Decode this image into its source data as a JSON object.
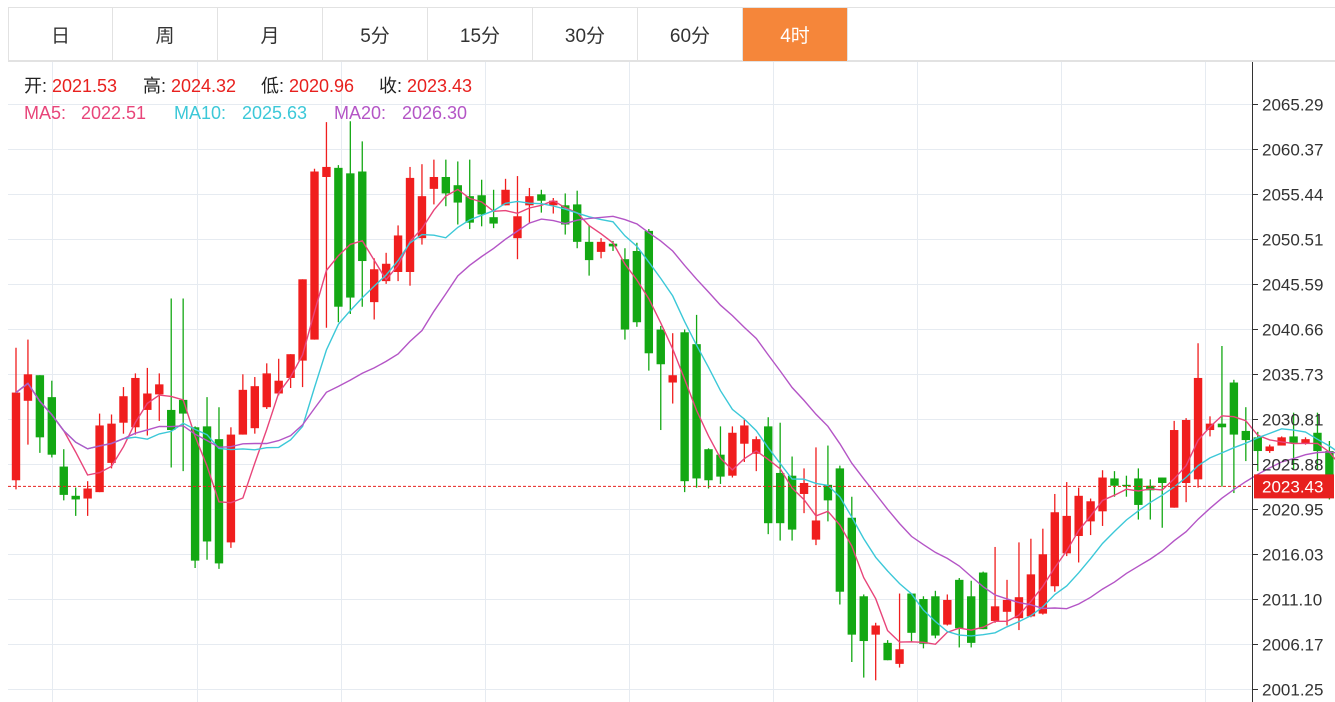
{
  "tabs": [
    {
      "label": "日",
      "active": false
    },
    {
      "label": "周",
      "active": false
    },
    {
      "label": "月",
      "active": false
    },
    {
      "label": "5分",
      "active": false
    },
    {
      "label": "15分",
      "active": false
    },
    {
      "label": "30分",
      "active": false
    },
    {
      "label": "60分",
      "active": false
    },
    {
      "label": "4时",
      "active": true
    }
  ],
  "ohlc_info": {
    "open_label": "开:",
    "open": "2021.53",
    "high_label": "高:",
    "high": "2024.32",
    "low_label": "低:",
    "low": "2020.96",
    "close_label": "收:",
    "close": "2023.43"
  },
  "ma_info": {
    "ma5_label": "MA5:",
    "ma5": "2022.51",
    "ma10_label": "MA10:",
    "ma10": "2025.63",
    "ma20_label": "MA20:",
    "ma20": "2026.30"
  },
  "colors": {
    "up": "#f01e1e",
    "down": "#13a813",
    "ma5": "#e8457a",
    "ma10": "#3cc8d8",
    "ma20": "#b455c6",
    "accent": "#f5863a",
    "value_text": "#e8201e",
    "grid": "#e6ebf1",
    "last_price_bg": "#e8201e"
  },
  "chart_data": {
    "type": "candlestick",
    "y_ticks": [
      "2065.29",
      "2060.37",
      "2055.44",
      "2050.51",
      "2045.59",
      "2040.66",
      "2035.73",
      "2030.81",
      "2025.88",
      "2020.95",
      "2016.03",
      "2011.10",
      "2006.17",
      "2001.25"
    ],
    "last_price": "2023.43",
    "ylim": [
      2001.25,
      2065.29
    ],
    "candles": [
      [
        2024.1,
        2033.7,
        2023.1,
        2038.6
      ],
      [
        2032.8,
        2035.7,
        2028.0,
        2039.5
      ],
      [
        2035.6,
        2028.8,
        2027.1,
        2035.6
      ],
      [
        2033.2,
        2026.9,
        2026.6,
        2035.0
      ],
      [
        2025.6,
        2022.5,
        2021.9,
        2027.5
      ],
      [
        2022.4,
        2022.0,
        2020.2,
        2023.3
      ],
      [
        2022.1,
        2023.2,
        2020.2,
        2024.0
      ],
      [
        2022.8,
        2030.1,
        2022.8,
        2031.4
      ],
      [
        2026.0,
        2030.3,
        2025.4,
        2031.3
      ],
      [
        2030.4,
        2033.3,
        2029.2,
        2034.3
      ],
      [
        2029.9,
        2035.3,
        2029.1,
        2035.8
      ],
      [
        2031.8,
        2033.6,
        2029.0,
        2036.4
      ],
      [
        2033.5,
        2034.6,
        2030.6,
        2035.8
      ],
      [
        2031.8,
        2029.6,
        2025.5,
        2044.0
      ],
      [
        2032.9,
        2031.4,
        2025.1,
        2044.0
      ],
      [
        2029.9,
        2015.3,
        2014.5,
        2030.0
      ],
      [
        2030.0,
        2017.4,
        2015.4,
        2033.2
      ],
      [
        2028.6,
        2015.0,
        2014.4,
        2032.1
      ],
      [
        2017.3,
        2029.1,
        2016.7,
        2029.9
      ],
      [
        2029.1,
        2034.0,
        2029.1,
        2035.7
      ],
      [
        2029.8,
        2034.4,
        2029.2,
        2035.4
      ],
      [
        2032.1,
        2035.8,
        2031.9,
        2036.9
      ],
      [
        2033.6,
        2035.0,
        2033.4,
        2037.4
      ],
      [
        2035.3,
        2037.9,
        2034.2,
        2037.9
      ],
      [
        2037.2,
        2046.1,
        2034.3,
        2046.1
      ],
      [
        2039.5,
        2057.9,
        2039.5,
        2058.2
      ],
      [
        2057.3,
        2058.4,
        2040.8,
        2063.3
      ],
      [
        2058.3,
        2043.1,
        2041.4,
        2058.6
      ],
      [
        2057.7,
        2044.1,
        2042.3,
        2063.4
      ],
      [
        2057.9,
        2048.1,
        2043.1,
        2061.2
      ],
      [
        2043.6,
        2047.2,
        2041.7,
        2048.4
      ],
      [
        2045.9,
        2047.8,
        2045.6,
        2049.0
      ],
      [
        2046.9,
        2050.9,
        2045.9,
        2052.0
      ],
      [
        2046.9,
        2057.2,
        2045.4,
        2058.4
      ],
      [
        2050.6,
        2055.2,
        2049.9,
        2058.7
      ],
      [
        2056.0,
        2057.3,
        2054.3,
        2059.2
      ],
      [
        2057.3,
        2055.5,
        2054.1,
        2059.2
      ],
      [
        2056.4,
        2054.5,
        2052.1,
        2059.0
      ],
      [
        2055.2,
        2052.3,
        2051.6,
        2059.2
      ],
      [
        2055.3,
        2053.2,
        2051.9,
        2057.0
      ],
      [
        2052.9,
        2052.2,
        2051.7,
        2055.9
      ],
      [
        2054.2,
        2055.9,
        2054.2,
        2057.1
      ],
      [
        2050.6,
        2053.0,
        2048.3,
        2057.4
      ],
      [
        2054.2,
        2055.2,
        2052.2,
        2056.1
      ],
      [
        2055.4,
        2054.7,
        2053.4,
        2055.9
      ],
      [
        2054.2,
        2054.7,
        2053.3,
        2055.0
      ],
      [
        2054.2,
        2052.1,
        2051.0,
        2055.5
      ],
      [
        2054.3,
        2050.2,
        2049.5,
        2055.8
      ],
      [
        2050.2,
        2048.2,
        2046.5,
        2052.0
      ],
      [
        2049.1,
        2050.2,
        2048.4,
        2050.6
      ],
      [
        2050.0,
        2049.7,
        2049.2,
        2050.3
      ],
      [
        2048.3,
        2040.6,
        2039.5,
        2049.5
      ],
      [
        2049.2,
        2041.4,
        2040.9,
        2050.1
      ],
      [
        2051.4,
        2038.0,
        2036.1,
        2051.6
      ],
      [
        2040.6,
        2036.8,
        2029.6,
        2041.0
      ],
      [
        2034.8,
        2035.6,
        2032.5,
        2040.2
      ],
      [
        2040.3,
        2024.0,
        2022.8,
        2040.6
      ],
      [
        2039.0,
        2024.3,
        2023.3,
        2042.2
      ],
      [
        2027.5,
        2024.1,
        2023.2,
        2027.6
      ],
      [
        2026.9,
        2024.5,
        2023.7,
        2030.0
      ],
      [
        2024.6,
        2029.3,
        2024.4,
        2030.0
      ],
      [
        2028.1,
        2030.1,
        2026.1,
        2030.8
      ],
      [
        2027.0,
        2028.6,
        2025.1,
        2028.9
      ],
      [
        2030.0,
        2019.4,
        2018.2,
        2031.0
      ],
      [
        2024.9,
        2019.4,
        2017.5,
        2030.4
      ],
      [
        2024.6,
        2018.7,
        2017.5,
        2026.7
      ],
      [
        2022.6,
        2023.8,
        2020.5,
        2025.4
      ],
      [
        2017.6,
        2019.7,
        2017.0,
        2027.7
      ],
      [
        2023.6,
        2021.9,
        2019.6,
        2027.9
      ],
      [
        2025.4,
        2011.9,
        2010.5,
        2025.7
      ],
      [
        2020.0,
        2007.2,
        2004.2,
        2022.3
      ],
      [
        2011.4,
        2006.5,
        2002.5,
        2011.6
      ],
      [
        2007.2,
        2008.2,
        2002.2,
        2008.5
      ],
      [
        2006.3,
        2004.4,
        2004.4,
        2006.6
      ],
      [
        2004.0,
        2005.6,
        2003.6,
        2011.7
      ],
      [
        2011.7,
        2007.4,
        2006.4,
        2011.7
      ],
      [
        2011.1,
        2006.2,
        2005.7,
        2011.4
      ],
      [
        2011.4,
        2007.1,
        2006.8,
        2012.0
      ],
      [
        2008.3,
        2011.0,
        2008.2,
        2011.6
      ],
      [
        2013.2,
        2007.9,
        2005.8,
        2013.4
      ],
      [
        2011.4,
        2006.3,
        2005.8,
        2013.1
      ],
      [
        2014.0,
        2007.8,
        2007.8,
        2014.1
      ],
      [
        2008.7,
        2010.3,
        2008.5,
        2016.8
      ],
      [
        2009.7,
        2011.0,
        2008.2,
        2013.2
      ],
      [
        2009.0,
        2011.3,
        2007.7,
        2017.3
      ],
      [
        2009.2,
        2013.8,
        2009.1,
        2017.7
      ],
      [
        2009.5,
        2016.0,
        2009.4,
        2018.8
      ],
      [
        2012.5,
        2020.6,
        2011.9,
        2022.6
      ],
      [
        2016.1,
        2020.2,
        2015.8,
        2023.9
      ],
      [
        2018.0,
        2022.4,
        2015.1,
        2023.3
      ],
      [
        2019.6,
        2021.8,
        2018.1,
        2022.1
      ],
      [
        2020.7,
        2024.4,
        2019.1,
        2025.2
      ],
      [
        2024.3,
        2023.5,
        2022.3,
        2025.1
      ],
      [
        2023.6,
        2023.5,
        2022.3,
        2024.6
      ],
      [
        2024.3,
        2021.4,
        2019.8,
        2025.4
      ],
      [
        2023.5,
        2023.0,
        2019.8,
        2024.2
      ],
      [
        2024.4,
        2023.8,
        2018.9,
        2024.4
      ],
      [
        2021.1,
        2029.6,
        2021.1,
        2030.6
      ],
      [
        2023.8,
        2030.7,
        2021.7,
        2030.9
      ],
      [
        2024.2,
        2035.3,
        2023.3,
        2039.1
      ],
      [
        2029.6,
        2030.3,
        2028.9,
        2031.1
      ],
      [
        2030.3,
        2029.9,
        2023.4,
        2038.8
      ],
      [
        2034.8,
        2029.1,
        2022.7,
        2035.1
      ],
      [
        2029.5,
        2028.5,
        2026.2,
        2032.1
      ],
      [
        2028.8,
        2027.3,
        2025.1,
        2029.4
      ],
      [
        2027.3,
        2027.8,
        2027.1,
        2028.0
      ],
      [
        2027.9,
        2028.8,
        2028.1,
        2028.9
      ],
      [
        2028.9,
        2028.2,
        2025.3,
        2031.5
      ],
      [
        2028.1,
        2028.6,
        2028.0,
        2028.8
      ],
      [
        2029.3,
        2027.3,
        2025.3,
        2031.5
      ],
      [
        2027.3,
        2023.0,
        2022.0,
        2028.4
      ],
      [
        2029.5,
        2020.8,
        2018.9,
        2029.8
      ],
      [
        2023.9,
        2021.9,
        2020.6,
        2024.2
      ],
      [
        2021.1,
        2023.7,
        2018.6,
        2026.5
      ],
      [
        2021.5,
        2023.4,
        2020.9,
        2024.3
      ]
    ]
  }
}
